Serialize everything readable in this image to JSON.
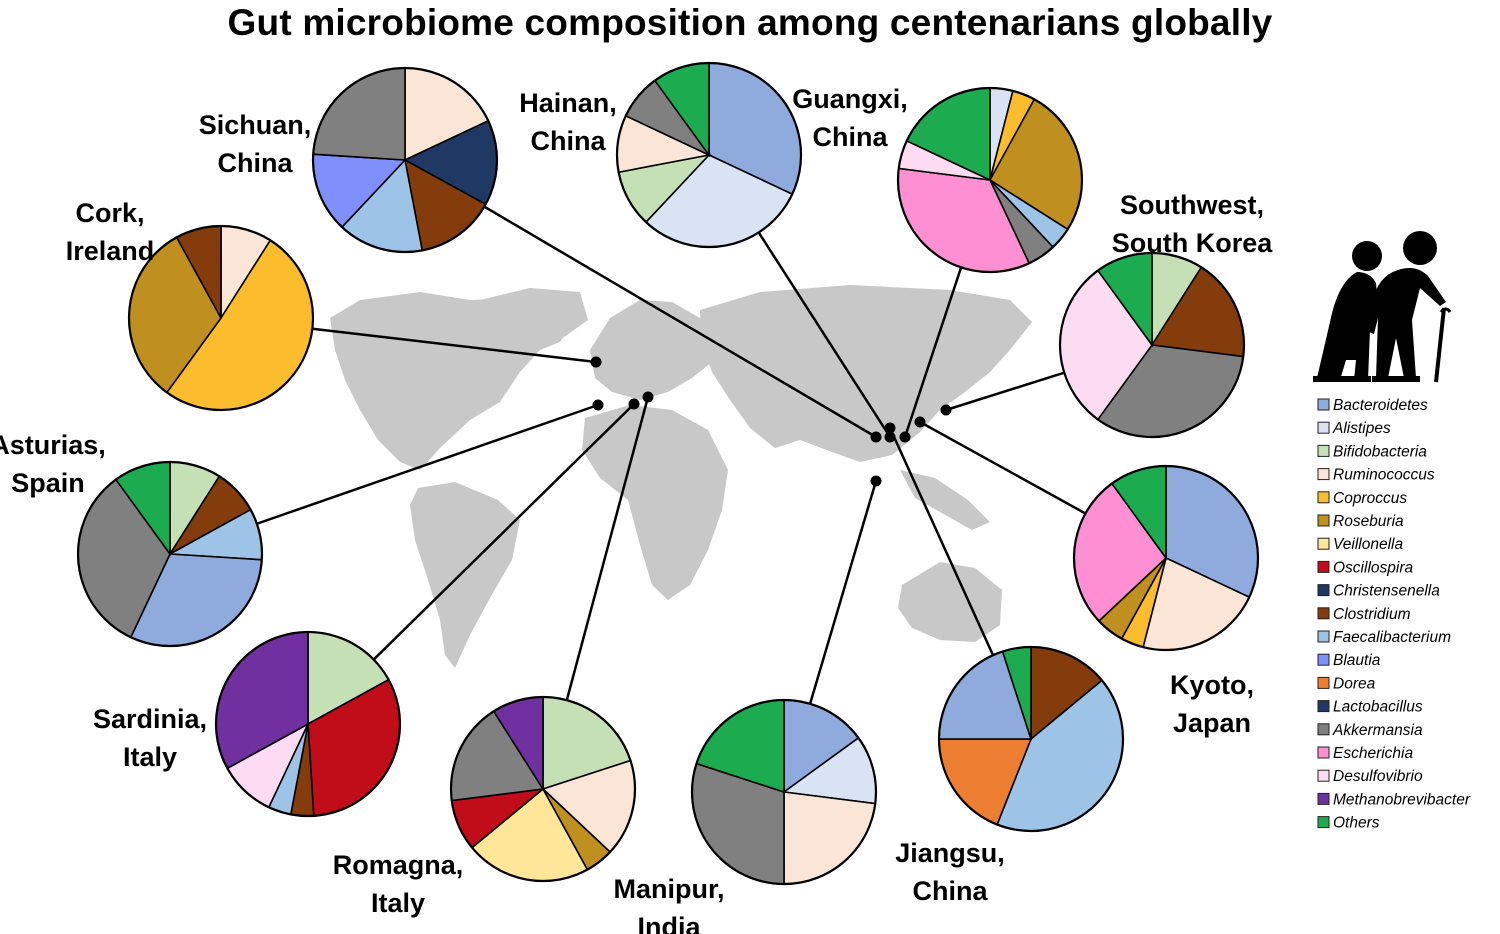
{
  "title": "Gut microbiome composition among centenarians globally",
  "chart_data": {
    "type": "pie",
    "title": "Gut microbiome composition among centenarians globally",
    "legend": [
      {
        "name": "Bacteroidetes",
        "color": "#8faadc"
      },
      {
        "name": "Alistipes",
        "color": "#dae3f3"
      },
      {
        "name": "Bifidobacteria",
        "color": "#c5e0b4"
      },
      {
        "name": "Ruminococcus",
        "color": "#fbe5d6"
      },
      {
        "name": "Coproccus",
        "color": "#fbbd2e"
      },
      {
        "name": "Roseburia",
        "color": "#bf9020"
      },
      {
        "name": "Veillonella",
        "color": "#ffe699"
      },
      {
        "name": "Oscillospira",
        "color": "#c00d19"
      },
      {
        "name": "Christensenella",
        "color": "#203864"
      },
      {
        "name": "Clostridium",
        "color": "#843c0c"
      },
      {
        "name": "Faecalibacterium",
        "color": "#9dc3e6"
      },
      {
        "name": "Blautia",
        "color": "#7f8ffb"
      },
      {
        "name": "Dorea",
        "color": "#ed7d31"
      },
      {
        "name": "Lactobacillus",
        "color": "#1f3864"
      },
      {
        "name": "Akkermansia",
        "color": "#808080"
      },
      {
        "name": "Escherichia",
        "color": "#ff8fd3"
      },
      {
        "name": "Desulfovibrio",
        "color": "#fddcf3"
      },
      {
        "name": "Methanobrevibacter",
        "color": "#7030a0"
      },
      {
        "name": "Others",
        "color": "#1cac4f"
      }
    ],
    "pies": [
      {
        "location": [
          "Sichuan,",
          "China"
        ],
        "slices": [
          {
            "name": "Ruminococcus",
            "value": 18
          },
          {
            "name": "Christensenella",
            "value": 15
          },
          {
            "name": "Clostridium",
            "value": 14
          },
          {
            "name": "Faecalibacterium",
            "value": 15
          },
          {
            "name": "Blautia",
            "value": 14
          },
          {
            "name": "Akkermansia",
            "value": 24
          }
        ]
      },
      {
        "location": [
          "Hainan,",
          "China"
        ],
        "slices": [
          {
            "name": "Bacteroidetes",
            "value": 32
          },
          {
            "name": "Alistipes",
            "value": 30
          },
          {
            "name": "Bifidobacteria",
            "value": 10
          },
          {
            "name": "Ruminococcus",
            "value": 10
          },
          {
            "name": "Akkermansia",
            "value": 8
          },
          {
            "name": "Others",
            "value": 10
          }
        ]
      },
      {
        "location": [
          "Guangxi,",
          "China"
        ],
        "slices": [
          {
            "name": "Alistipes",
            "value": 4
          },
          {
            "name": "Coproccus",
            "value": 4
          },
          {
            "name": "Roseburia",
            "value": 26
          },
          {
            "name": "Faecalibacterium",
            "value": 4
          },
          {
            "name": "Akkermansia",
            "value": 5
          },
          {
            "name": "Escherichia",
            "value": 34
          },
          {
            "name": "Desulfovibrio",
            "value": 5
          },
          {
            "name": "Others",
            "value": 18
          }
        ]
      },
      {
        "location": [
          "Cork,",
          "Ireland"
        ],
        "slices": [
          {
            "name": "Ruminococcus",
            "value": 9
          },
          {
            "name": "Coproccus",
            "value": 51
          },
          {
            "name": "Roseburia",
            "value": 32
          },
          {
            "name": "Clostridium",
            "value": 8
          }
        ]
      },
      {
        "location": [
          "Southwest,",
          "South Korea"
        ],
        "slices": [
          {
            "name": "Bifidobacteria",
            "value": 9
          },
          {
            "name": "Clostridium",
            "value": 18
          },
          {
            "name": "Akkermansia",
            "value": 33
          },
          {
            "name": "Desulfovibrio",
            "value": 30
          },
          {
            "name": "Others",
            "value": 10
          }
        ]
      },
      {
        "location": [
          "Asturias,",
          "Spain"
        ],
        "slices": [
          {
            "name": "Bifidobacteria",
            "value": 9
          },
          {
            "name": "Clostridium",
            "value": 8
          },
          {
            "name": "Faecalibacterium",
            "value": 9
          },
          {
            "name": "Bacteroidetes",
            "value": 31
          },
          {
            "name": "Akkermansia",
            "value": 33
          },
          {
            "name": "Others",
            "value": 10
          }
        ]
      },
      {
        "location": [
          "Kyoto,",
          "Japan"
        ],
        "slices": [
          {
            "name": "Bacteroidetes",
            "value": 32
          },
          {
            "name": "Ruminococcus",
            "value": 22
          },
          {
            "name": "Coproccus",
            "value": 4
          },
          {
            "name": "Roseburia",
            "value": 5
          },
          {
            "name": "Escherichia",
            "value": 27
          },
          {
            "name": "Others",
            "value": 10
          }
        ]
      },
      {
        "location": [
          "Sardinia,",
          "Italy"
        ],
        "slices": [
          {
            "name": "Bifidobacteria",
            "value": 17
          },
          {
            "name": "Oscillospira",
            "value": 32
          },
          {
            "name": "Clostridium",
            "value": 4
          },
          {
            "name": "Faecalibacterium",
            "value": 4
          },
          {
            "name": "Desulfovibrio",
            "value": 10
          },
          {
            "name": "Methanobrevibacter",
            "value": 33
          }
        ]
      },
      {
        "location": [
          "Romagna,",
          "Italy"
        ],
        "slices": [
          {
            "name": "Bifidobacteria",
            "value": 20
          },
          {
            "name": "Ruminococcus",
            "value": 17
          },
          {
            "name": "Roseburia",
            "value": 5
          },
          {
            "name": "Veillonella",
            "value": 22
          },
          {
            "name": "Oscillospira",
            "value": 9
          },
          {
            "name": "Akkermansia",
            "value": 18
          },
          {
            "name": "Methanobrevibacter",
            "value": 9
          }
        ]
      },
      {
        "location": [
          "Manipur,",
          "India"
        ],
        "slices": [
          {
            "name": "Bacteroidetes",
            "value": 15
          },
          {
            "name": "Alistipes",
            "value": 12
          },
          {
            "name": "Ruminococcus",
            "value": 23
          },
          {
            "name": "Akkermansia",
            "value": 30
          },
          {
            "name": "Others",
            "value": 20
          }
        ]
      },
      {
        "location": [
          "Jiangsu,",
          "China"
        ],
        "slices": [
          {
            "name": "Clostridium",
            "value": 14
          },
          {
            "name": "Faecalibacterium",
            "value": 42
          },
          {
            "name": "Dorea",
            "value": 19
          },
          {
            "name": "Bacteroidetes",
            "value": 20
          },
          {
            "name": "Others",
            "value": 5
          }
        ]
      }
    ]
  }
}
